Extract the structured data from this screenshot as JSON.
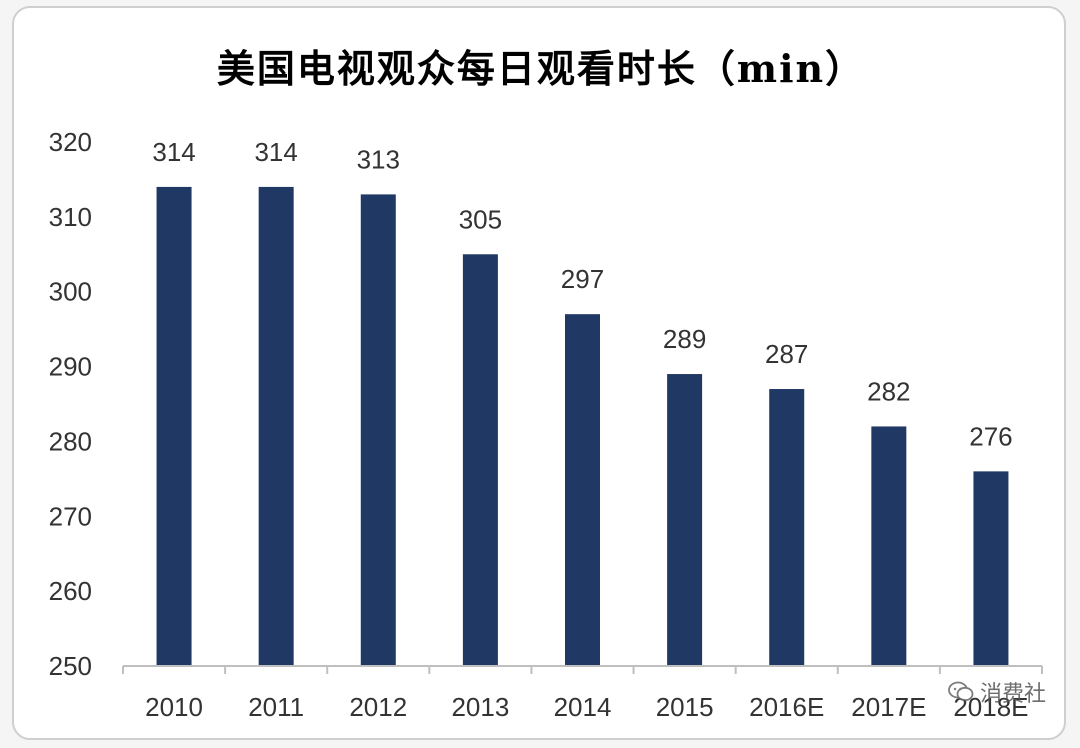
{
  "chart_data": {
    "type": "bar",
    "title": "美国电视观众每日观看时长（min）",
    "categories": [
      "2010",
      "2011",
      "2012",
      "2013",
      "2014",
      "2015",
      "2016E",
      "2017E",
      "2018E"
    ],
    "values": [
      314,
      314,
      313,
      305,
      297,
      289,
      287,
      282,
      276
    ],
    "ylim": [
      250,
      320
    ],
    "yticks": [
      320,
      310,
      300,
      290,
      280,
      270,
      260,
      250
    ],
    "grid": false,
    "legend": "none",
    "bar_color": "#1f3864"
  },
  "watermark": {
    "text": "消费社",
    "icon": "wechat-icon"
  }
}
